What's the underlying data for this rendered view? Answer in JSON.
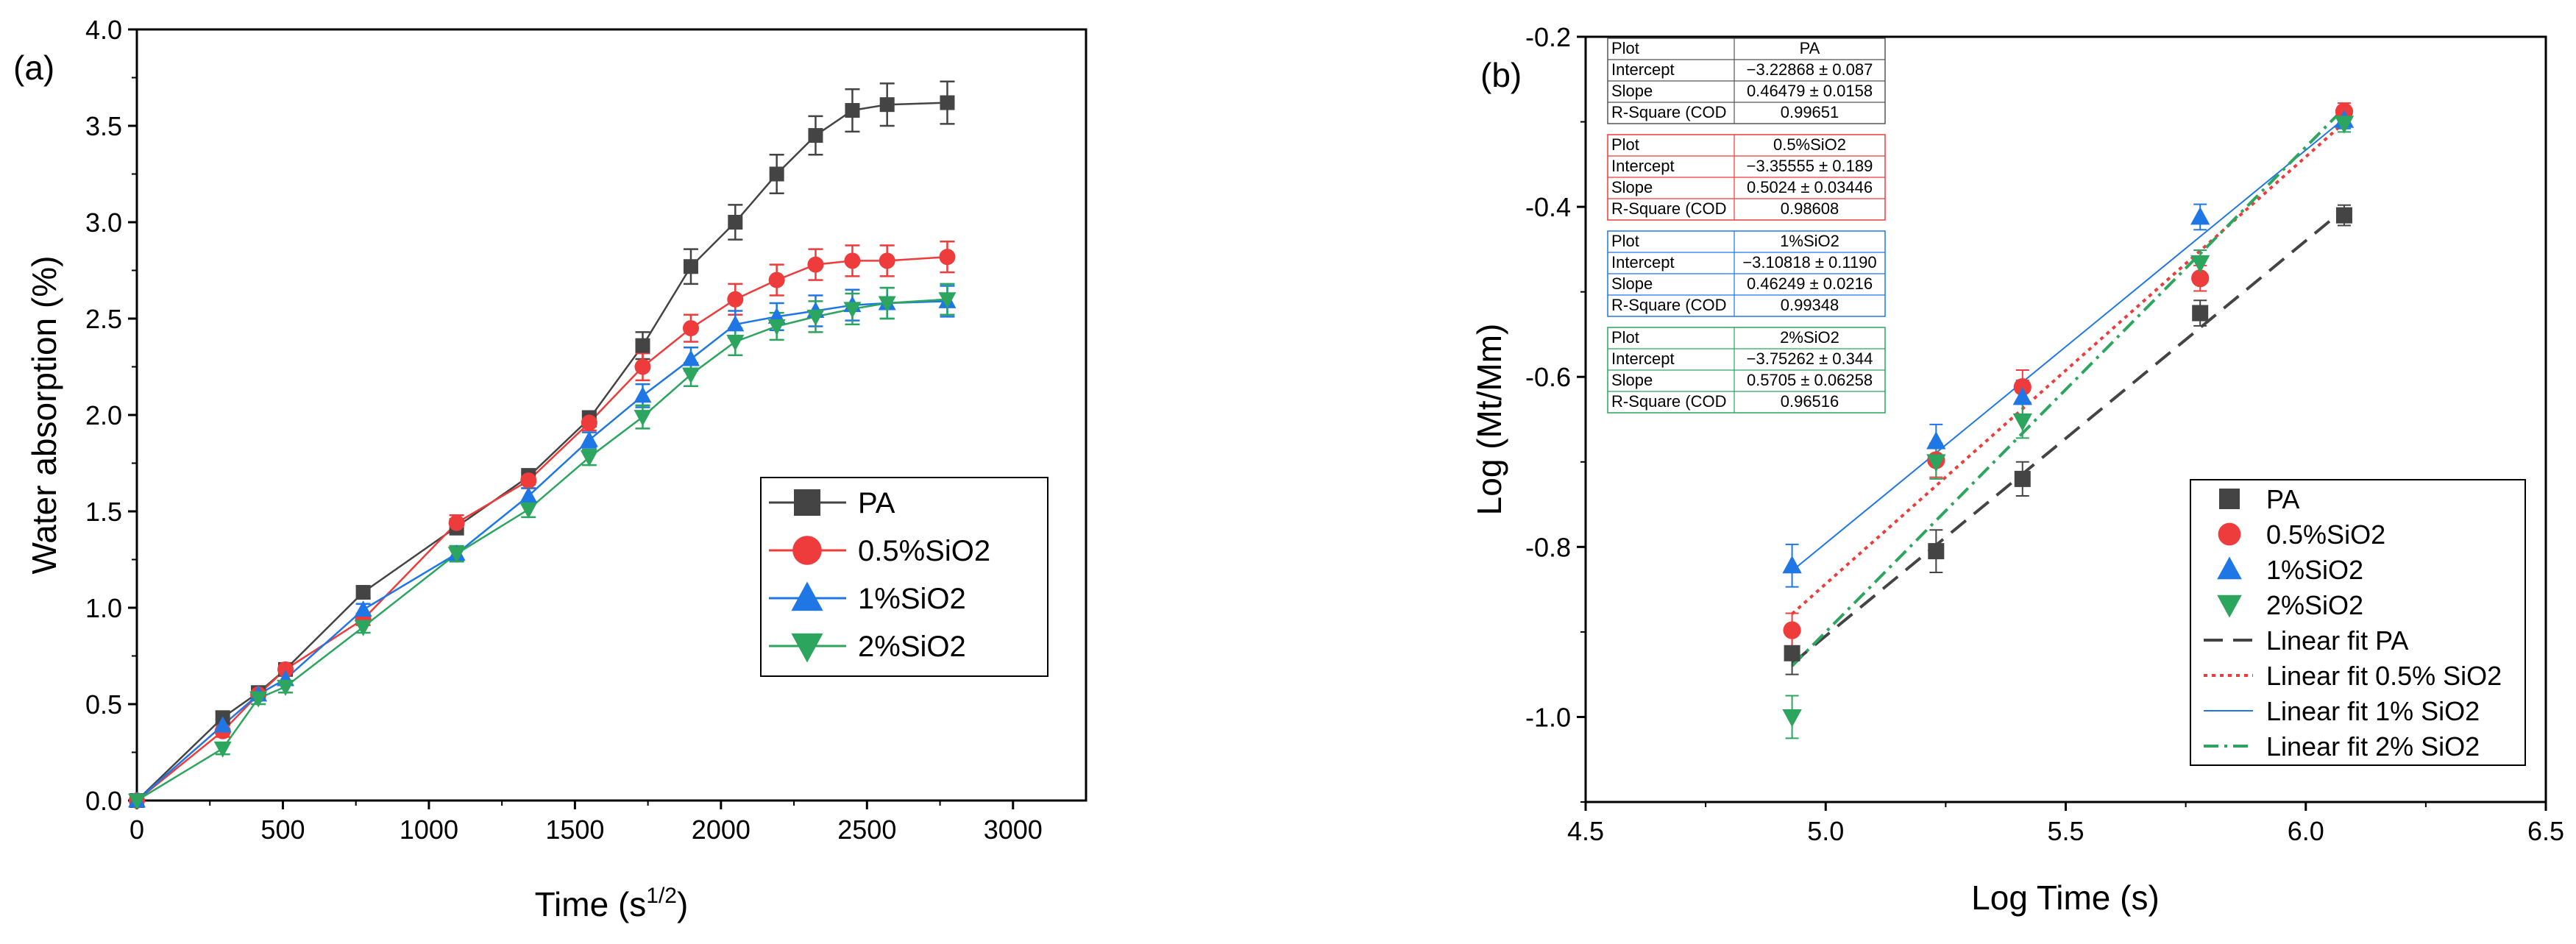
{
  "chart_data": [
    {
      "panel_label": "(a)",
      "type": "line",
      "xlabel": "Time (s",
      "xlabel_sup": "1/2",
      "xlabel_close": ")",
      "ylabel": "Water absorption (%)",
      "xlim": [
        0,
        3250
      ],
      "ylim": [
        0,
        4.0
      ],
      "xticks": [
        "0",
        "500",
        "1000",
        "1500",
        "2000",
        "2500",
        "3000"
      ],
      "yticks": [
        "0.0",
        "0.5",
        "1.0",
        "1.5",
        "2.0",
        "2.5",
        "3.0",
        "3.5",
        "4.0"
      ],
      "legend_position": "center-right",
      "x": [
        0,
        294,
        416,
        509,
        775,
        1095,
        1341,
        1549,
        1732,
        1897,
        2049,
        2191,
        2324,
        2450,
        2569,
        2775
      ],
      "series": [
        {
          "name": "PA",
          "color": "#444444",
          "marker": "square",
          "values": [
            0,
            0.43,
            0.56,
            0.68,
            1.08,
            1.42,
            1.68,
            1.98,
            2.36,
            2.77,
            3.0,
            3.25,
            3.45,
            3.58,
            3.61,
            3.62
          ],
          "errors": [
            0,
            0.03,
            0.03,
            0.03,
            0.03,
            0.04,
            0.04,
            0.04,
            0.07,
            0.09,
            0.09,
            0.1,
            0.1,
            0.11,
            0.11,
            0.11
          ]
        },
        {
          "name": "0.5%SiO2",
          "color": "#ee3b3b",
          "marker": "circle",
          "values": [
            0,
            0.36,
            0.55,
            0.68,
            0.94,
            1.44,
            1.66,
            1.96,
            2.25,
            2.45,
            2.6,
            2.7,
            2.78,
            2.8,
            2.8,
            2.82
          ],
          "errors": [
            0,
            0.03,
            0.03,
            0.03,
            0.03,
            0.04,
            0.04,
            0.04,
            0.07,
            0.07,
            0.08,
            0.08,
            0.08,
            0.08,
            0.08,
            0.08
          ]
        },
        {
          "name": "1%SiO2",
          "color": "#1f77e5",
          "marker": "triangle-up",
          "values": [
            0,
            0.39,
            0.55,
            0.63,
            0.99,
            1.28,
            1.58,
            1.87,
            2.1,
            2.29,
            2.47,
            2.51,
            2.54,
            2.57,
            2.58,
            2.59
          ],
          "errors": [
            0,
            0.03,
            0.03,
            0.03,
            0.03,
            0.04,
            0.04,
            0.04,
            0.06,
            0.06,
            0.07,
            0.07,
            0.08,
            0.08,
            0.08,
            0.08
          ]
        },
        {
          "name": "2%SiO2",
          "color": "#2ca55e",
          "marker": "triangle-down",
          "values": [
            0,
            0.27,
            0.53,
            0.59,
            0.9,
            1.28,
            1.51,
            1.78,
            1.99,
            2.21,
            2.38,
            2.46,
            2.51,
            2.55,
            2.58,
            2.6
          ],
          "errors": [
            0,
            0.03,
            0.03,
            0.03,
            0.03,
            0.04,
            0.04,
            0.04,
            0.06,
            0.06,
            0.07,
            0.07,
            0.08,
            0.08,
            0.08,
            0.08
          ]
        }
      ]
    },
    {
      "panel_label": "(b)",
      "type": "scatter",
      "xlabel": "Log Time (s)",
      "ylabel": "Log (Mt/Mm)",
      "xlim": [
        4.5,
        6.5
      ],
      "ylim": [
        -1.1,
        -0.2
      ],
      "xticks": [
        "4.5",
        "5.0",
        "5.5",
        "6.0",
        "6.5"
      ],
      "yticks": [
        "-0.2",
        "-0.4",
        "-0.6",
        "-0.8",
        "-1.0"
      ],
      "ytick_values": [
        -0.2,
        -0.4,
        -0.6,
        -0.8,
        -1.0
      ],
      "legend_position": "bottom-right",
      "x": [
        4.93,
        5.23,
        5.41,
        5.78,
        6.08
      ],
      "series": [
        {
          "name": "PA",
          "color": "#444444",
          "marker": "square",
          "values": [
            -0.925,
            -0.805,
            -0.72,
            -0.525,
            -0.41
          ],
          "errors": [
            0.025,
            0.025,
            0.02,
            0.015,
            0.012
          ]
        },
        {
          "name": "0.5%SiO2",
          "color": "#ee3b3b",
          "marker": "circle",
          "values": [
            -0.898,
            -0.698,
            -0.612,
            -0.484,
            -0.288
          ],
          "errors": [
            0.02,
            0.02,
            0.02,
            0.015,
            0.01
          ]
        },
        {
          "name": "1%SiO2",
          "color": "#1f77e5",
          "marker": "triangle-up",
          "values": [
            -0.822,
            -0.676,
            -0.624,
            -0.412,
            -0.298
          ],
          "errors": [
            0.025,
            0.02,
            0.02,
            0.015,
            0.01
          ]
        },
        {
          "name": "2%SiO2",
          "color": "#2ca55e",
          "marker": "triangle-down",
          "values": [
            -1.0,
            -0.7,
            -0.652,
            -0.466,
            -0.302
          ],
          "errors": [
            0.025,
            0.02,
            0.02,
            0.015,
            0.01
          ]
        }
      ],
      "fits": [
        {
          "name": "Linear fit PA",
          "color": "#444444",
          "style": "dashed",
          "intercept": -3.22868,
          "slope": 0.46479,
          "x_range": [
            4.93,
            6.08
          ]
        },
        {
          "name": "Linear fit 0.5% SiO2",
          "color": "#ee3b3b",
          "style": "dotted",
          "intercept": -3.35555,
          "slope": 0.5024,
          "x_range": [
            4.93,
            6.08
          ]
        },
        {
          "name": "Linear fit 1% SiO2",
          "color": "#1f77e5",
          "style": "solid",
          "intercept": -3.10818,
          "slope": 0.46249,
          "x_range": [
            4.93,
            6.08
          ]
        },
        {
          "name": "Linear fit 2% SiO2",
          "color": "#2ca55e",
          "style": "dashdot",
          "intercept": -3.75262,
          "slope": 0.5705,
          "x_range": [
            4.93,
            6.08
          ]
        }
      ],
      "fit_tables": [
        {
          "color": "#555555",
          "rows": [
            [
              "Plot",
              "PA"
            ],
            [
              "Intercept",
              "−3.22868 ± 0.087"
            ],
            [
              "Slope",
              "0.46479 ± 0.0158"
            ],
            [
              "R-Square (COD",
              "0.99651"
            ]
          ]
        },
        {
          "color": "#ee3b3b",
          "rows": [
            [
              "Plot",
              "0.5%SiO2"
            ],
            [
              "Intercept",
              "−3.35555 ± 0.189"
            ],
            [
              "Slope",
              "0.5024 ± 0.03446"
            ],
            [
              "R-Square (COD",
              "0.98608"
            ]
          ]
        },
        {
          "color": "#1f77e5",
          "rows": [
            [
              "Plot",
              "1%SiO2"
            ],
            [
              "Intercept",
              "−3.10818 ± 0.1190"
            ],
            [
              "Slope",
              "0.46249 ± 0.0216"
            ],
            [
              "R-Square (COD",
              "0.99348"
            ]
          ]
        },
        {
          "color": "#2ca55e",
          "rows": [
            [
              "Plot",
              "2%SiO2"
            ],
            [
              "Intercept",
              "−3.75262 ± 0.344"
            ],
            [
              "Slope",
              "0.5705 ± 0.06258"
            ],
            [
              "R-Square (COD",
              "0.96516"
            ]
          ]
        }
      ]
    }
  ]
}
